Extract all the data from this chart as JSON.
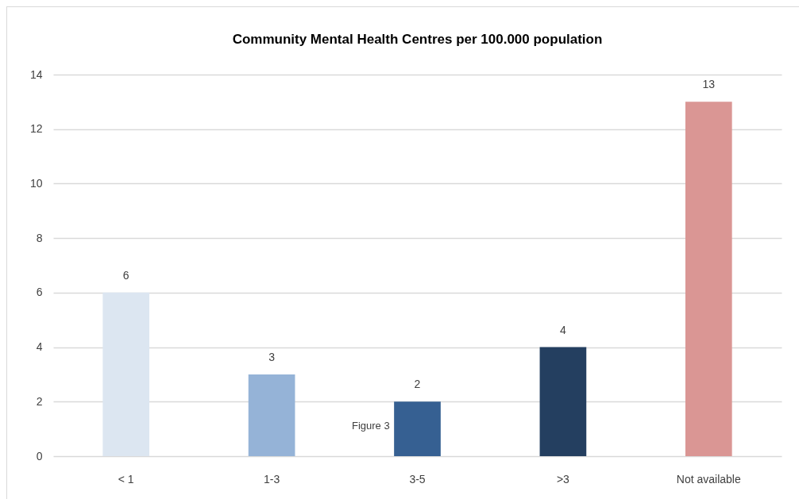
{
  "chart_data": {
    "type": "bar",
    "title": "Community Mental Health Centres per 100.000 population",
    "categories": [
      "< 1",
      "1-3",
      "3-5",
      ">3",
      "Not available"
    ],
    "values": [
      6,
      3,
      2,
      4,
      13
    ],
    "colors": [
      "#dce6f1",
      "#95b3d7",
      "#366092",
      "#243f60",
      "#da9694"
    ],
    "ylim": [
      0,
      14
    ],
    "yticks": [
      0,
      2,
      4,
      6,
      8,
      10,
      12,
      14
    ],
    "grid": "y",
    "data_labels": true,
    "annotations": [
      "Figure 3"
    ]
  }
}
